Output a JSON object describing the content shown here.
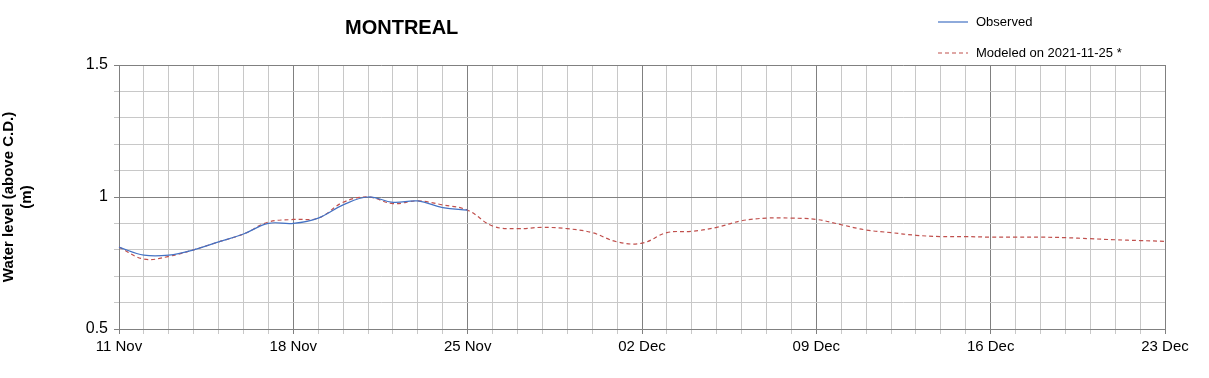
{
  "chart_data": {
    "type": "line",
    "title": "MONTREAL",
    "y_label": [
      "Water level (above C.D.)",
      "(m)"
    ],
    "categories": [
      "11 Nov",
      null,
      null,
      null,
      null,
      null,
      null,
      "18 Nov",
      null,
      null,
      null,
      null,
      null,
      null,
      "25 Nov",
      null,
      null,
      null,
      null,
      null,
      null,
      "02 Dec",
      null,
      null,
      null,
      null,
      null,
      null,
      "09 Dec",
      null,
      null,
      null,
      null,
      null,
      null,
      "16 Dec",
      null,
      null,
      null,
      null,
      null,
      null,
      "23 Dec"
    ],
    "series": [
      {
        "name": "Observed",
        "color": "#4472c4",
        "line_style": "solid",
        "marker": "none",
        "values": [
          0.81,
          0.78,
          0.78,
          0.8,
          0.83,
          0.86,
          0.9,
          0.9,
          0.92,
          0.97,
          1.0,
          0.98,
          0.985,
          0.96,
          0.95,
          null,
          null,
          null,
          null,
          null,
          null,
          null,
          null,
          null,
          null,
          null,
          null,
          null,
          null,
          null,
          null,
          null,
          null,
          null,
          null,
          null,
          null,
          null,
          null,
          null,
          null,
          null,
          null
        ]
      },
      {
        "name": "Modeled on 2021-11-25 *",
        "color": "#c0504d",
        "line_style": "dashed",
        "marker": "none",
        "values": [
          0.81,
          0.765,
          0.775,
          0.8,
          0.83,
          0.86,
          0.905,
          0.915,
          0.92,
          0.98,
          1.0,
          0.975,
          0.985,
          0.97,
          0.95,
          0.89,
          0.88,
          0.885,
          0.88,
          0.865,
          0.83,
          0.825,
          0.865,
          0.87,
          0.885,
          0.91,
          0.92,
          0.92,
          0.915,
          0.895,
          0.875,
          0.865,
          0.855,
          0.85,
          0.85,
          0.848,
          0.848,
          0.848,
          0.846,
          0.842,
          0.838,
          0.835,
          0.832
        ]
      }
    ],
    "ylim": [
      0.5,
      1.5
    ],
    "yticks": [
      0.5,
      1,
      1.5
    ],
    "grid": true,
    "legend": "top-right"
  }
}
